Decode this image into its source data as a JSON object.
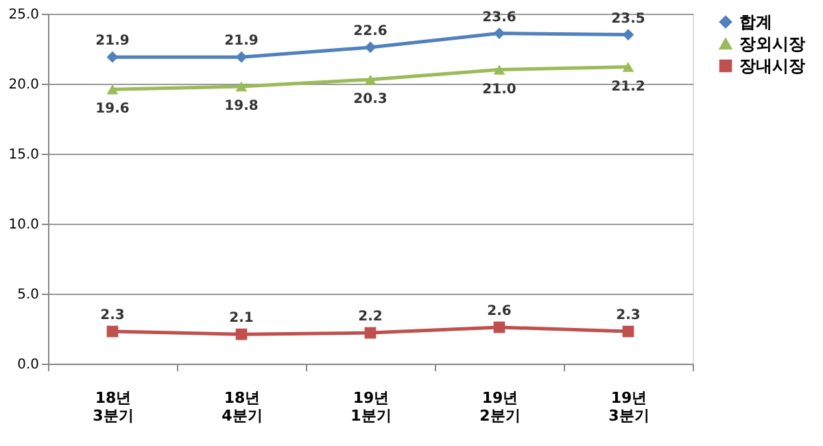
{
  "chart_data": {
    "type": "line",
    "categories": [
      "18년 3분기",
      "18년 4분기",
      "19년 1분기",
      "19년 2분기",
      "19년 3분기"
    ],
    "series": [
      {
        "name": "합계",
        "color": "#4f81bd",
        "marker": "diamond",
        "values": [
          21.9,
          21.9,
          22.6,
          23.6,
          23.5
        ],
        "value_labels": [
          "21.9",
          "21.9",
          "22.6",
          "23.6",
          "23.5"
        ]
      },
      {
        "name": "장외시장",
        "color": "#9bbb59",
        "marker": "triangle",
        "values": [
          19.6,
          19.8,
          20.3,
          21.0,
          21.2
        ],
        "value_labels": [
          "19.6",
          "19.8",
          "20.3",
          "21.0",
          "21.2"
        ]
      },
      {
        "name": "장내시장",
        "color": "#c0504d",
        "marker": "square",
        "values": [
          2.3,
          2.1,
          2.2,
          2.6,
          2.3
        ],
        "value_labels": [
          "2.3",
          "2.1",
          "2.2",
          "2.6",
          "2.3"
        ]
      }
    ],
    "ylim": [
      0,
      25
    ],
    "yticks": [
      {
        "value": 0,
        "label": "0.0"
      },
      {
        "value": 5,
        "label": "5.0"
      },
      {
        "value": 10,
        "label": "10.0"
      },
      {
        "value": 15,
        "label": "15.0"
      },
      {
        "value": 20,
        "label": "20.0"
      },
      {
        "value": 25,
        "label": "25.0"
      }
    ],
    "grid": "y",
    "legend": "right",
    "line_style": "solid"
  }
}
